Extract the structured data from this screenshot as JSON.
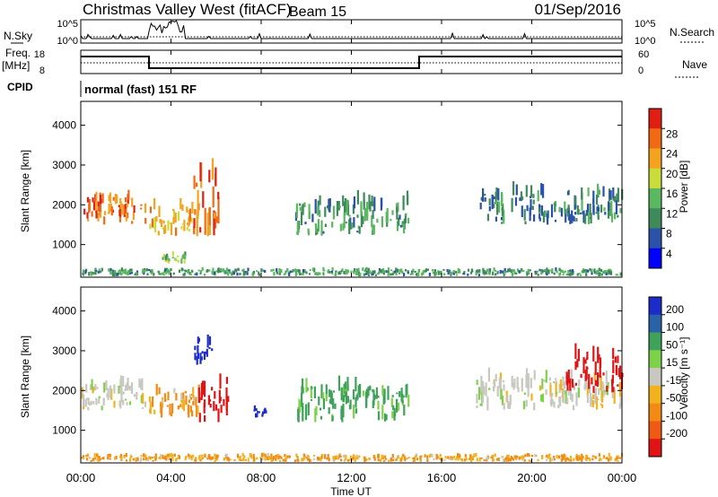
{
  "header": {
    "title": "Christmas Valley West (fitACF)",
    "beam": "Beam 15",
    "date": "01/Sep/2016"
  },
  "noise_panel": {
    "left_label": "N.Sky",
    "right_label": "N.Search",
    "left_ticks": [
      "10^5",
      "10^0"
    ],
    "right_ticks": [
      "10^5",
      "10^0"
    ]
  },
  "freq_panel": {
    "left_label": "Freq.",
    "left_unit": "[MHz]",
    "right_label": "Nave",
    "left_ticks": [
      "18",
      "8"
    ],
    "right_ticks": [
      "60",
      "0"
    ]
  },
  "cpid": {
    "label": "CPID",
    "value": "normal (fast) 151 RF"
  },
  "x_axis": {
    "label": "Time UT",
    "ticks": [
      "00:00",
      "04:00",
      "08:00",
      "12:00",
      "16:00",
      "20:00",
      "00:00"
    ]
  },
  "colors": {
    "power_scale": [
      "#0000ff",
      "#2a52a8",
      "#3e8a5a",
      "#5ab860",
      "#c8dc3c",
      "#f5a21e",
      "#f06a14",
      "#e01e14"
    ],
    "velocity_scale": [
      "#1c2cc8",
      "#2a62a8",
      "#3ea25a",
      "#7ed24a",
      "#c8c8c0",
      "#f2b21e",
      "#f28a14",
      "#ee5a14",
      "#e01414"
    ]
  },
  "chart_data": [
    {
      "type": "heatmap",
      "title": "Power",
      "xlabel": "Time UT",
      "ylabel": "Slant Range [km]",
      "xlim_hours": [
        0,
        24
      ],
      "ylim": [
        180,
        4600
      ],
      "y_ticks": [
        1000,
        2000,
        3000,
        4000
      ],
      "colorbar": {
        "label": "Power [dB]",
        "ticks": [
          "4",
          "8",
          "12",
          "16",
          "20",
          "24",
          "28"
        ]
      },
      "features": [
        {
          "name": "ground scatter band",
          "t0": 0,
          "t1": 2.9,
          "r0": 1500,
          "r1": 2400,
          "level": 24
        },
        {
          "name": "post-04 band",
          "t0": 3.0,
          "t1": 5.2,
          "r0": 1200,
          "r1": 2200,
          "level": 20
        },
        {
          "name": "slanted streak",
          "t0": 4.9,
          "t1": 6.2,
          "r0": 1200,
          "r1": 3400,
          "level": 24
        },
        {
          "name": "low patch",
          "t0": 3.5,
          "t1": 4.6,
          "r0": 500,
          "r1": 800,
          "level": 16
        },
        {
          "name": "mid-day patches",
          "t0": 9.5,
          "t1": 14.6,
          "r0": 1200,
          "r1": 2400,
          "level": 12
        },
        {
          "name": "evening arc",
          "t0": 17.5,
          "t1": 24,
          "r0": 1500,
          "r1": 2600,
          "level": 10
        },
        {
          "name": "near-range clutter",
          "t0": 0,
          "t1": 24,
          "r0": 200,
          "r1": 400,
          "level": 12
        }
      ]
    },
    {
      "type": "heatmap",
      "title": "Velocity",
      "xlabel": "Time UT",
      "ylabel": "Slant Range [km]",
      "xlim_hours": [
        0,
        24
      ],
      "ylim": [
        180,
        4600
      ],
      "y_ticks": [
        1000,
        2000,
        3000,
        4000
      ],
      "colorbar": {
        "label": "Velocity [m s⁻¹]",
        "ticks": [
          "200",
          "100",
          "50",
          "15",
          "-15",
          "-50",
          "-100",
          "-200"
        ]
      },
      "features": [
        {
          "name": "ground scatter (grey)",
          "t0": 0,
          "t1": 2.9,
          "r0": 1500,
          "r1": 2400,
          "velocity": 0
        },
        {
          "name": "post-04 band",
          "t0": 3.0,
          "t1": 5.2,
          "r0": 1300,
          "r1": 2200,
          "velocity": -30
        },
        {
          "name": "slanted red streak",
          "t0": 5.2,
          "t1": 6.5,
          "r0": 1200,
          "r1": 2600,
          "velocity": -200
        },
        {
          "name": "blue patch high",
          "t0": 5.0,
          "t1": 5.8,
          "r0": 2600,
          "r1": 3600,
          "velocity": 200
        },
        {
          "name": "blue patch 08",
          "t0": 7.5,
          "t1": 8.2,
          "r0": 1300,
          "r1": 1600,
          "velocity": 200
        },
        {
          "name": "mid-day green/orange",
          "t0": 9.5,
          "t1": 14.6,
          "r0": 1200,
          "r1": 2400,
          "velocity": 40
        },
        {
          "name": "evening grey arc",
          "t0": 17.5,
          "t1": 24,
          "r0": 1500,
          "r1": 2600,
          "velocity": 0
        },
        {
          "name": "late red streaks",
          "t0": 21.5,
          "t1": 24,
          "r0": 1900,
          "r1": 3200,
          "velocity": -200
        },
        {
          "name": "near-range orange",
          "t0": 0,
          "t1": 24,
          "r0": 200,
          "r1": 400,
          "velocity": -30
        }
      ]
    }
  ]
}
